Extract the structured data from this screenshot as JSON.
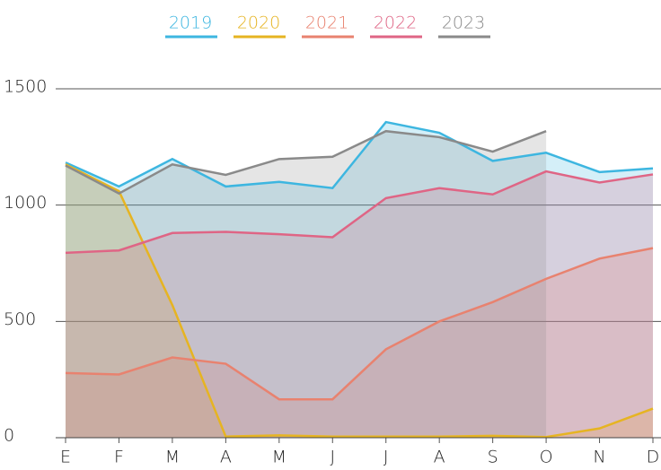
{
  "chart_data": {
    "type": "area",
    "categories": [
      "E",
      "F",
      "M",
      "A",
      "M",
      "J",
      "J",
      "A",
      "S",
      "O",
      "N",
      "D"
    ],
    "series": [
      {
        "name": "2019",
        "color": "#3db6e0",
        "values": [
          1183,
          1080,
          1198,
          1080,
          1100,
          1073,
          1357,
          1311,
          1190,
          1225,
          1142,
          1158
        ]
      },
      {
        "name": "2020",
        "color": "#e6b422",
        "values": [
          1175,
          1060,
          570,
          5,
          10,
          5,
          5,
          5,
          8,
          3,
          40,
          125
        ]
      },
      {
        "name": "2021",
        "color": "#e8826f",
        "values": [
          278,
          272,
          345,
          318,
          165,
          165,
          380,
          500,
          583,
          683,
          770,
          815
        ]
      },
      {
        "name": "2022",
        "color": "#df6585",
        "values": [
          795,
          805,
          880,
          885,
          875,
          862,
          1030,
          1073,
          1046,
          1145,
          1097,
          1132
        ]
      },
      {
        "name": "2023",
        "color": "#8a8a8a",
        "values": [
          1170,
          1050,
          1175,
          1130,
          1198,
          1208,
          1318,
          1292,
          1230,
          1318,
          null,
          null
        ]
      }
    ],
    "ylim": [
      0,
      1500
    ],
    "yticks": [
      0,
      500,
      1000,
      1500
    ],
    "grid": true,
    "legend": "top"
  }
}
